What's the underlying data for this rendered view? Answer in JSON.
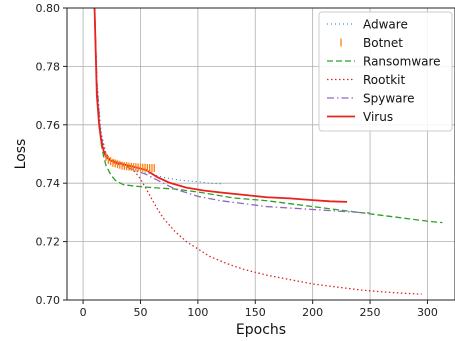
{
  "chart_data": {
    "type": "line",
    "xlabel": "Epochs",
    "ylabel": "Loss",
    "xlim": [
      -14,
      324
    ],
    "ylim": [
      0.7,
      0.8
    ],
    "xticks": [
      0,
      50,
      100,
      150,
      200,
      250,
      300
    ],
    "yticks": [
      0.7,
      0.72,
      0.74,
      0.76,
      0.78,
      0.8
    ],
    "xtick_labels": [
      "0",
      "50",
      "100",
      "150",
      "200",
      "250",
      "300"
    ],
    "ytick_labels": [
      "0.70",
      "0.72",
      "0.74",
      "0.76",
      "0.78",
      "0.80"
    ],
    "grid": true,
    "legend_position": "top-right",
    "series": [
      {
        "name": "Adware",
        "color": "#1f77b4",
        "style": "dotted-fine",
        "x": [
          10,
          12,
          15,
          18,
          22,
          28,
          35,
          45,
          55,
          70,
          85,
          100,
          110,
          120
        ],
        "y": [
          0.8,
          0.775,
          0.76,
          0.752,
          0.748,
          0.747,
          0.746,
          0.744,
          0.7435,
          0.742,
          0.741,
          0.7405,
          0.74,
          0.7398
        ]
      },
      {
        "name": "Botnet",
        "color": "#ff7f0e",
        "style": "errorbar",
        "x": [
          10,
          12,
          15,
          18,
          20,
          22,
          24,
          26,
          28,
          30,
          32,
          34,
          36,
          38,
          40,
          42,
          44,
          46,
          48,
          50,
          52,
          54,
          56,
          58,
          60,
          62
        ],
        "y": [
          0.8,
          0.775,
          0.758,
          0.751,
          0.749,
          0.748,
          0.7475,
          0.747,
          0.7468,
          0.7465,
          0.7463,
          0.746,
          0.7459,
          0.7458,
          0.7457,
          0.7456,
          0.7455,
          0.7455,
          0.7454,
          0.7454,
          0.7453,
          0.7453,
          0.7452,
          0.7452,
          0.7452,
          0.7452
        ]
      },
      {
        "name": "Ransomware",
        "color": "#2ca02c",
        "style": "dashed",
        "x": [
          10,
          12,
          14,
          16,
          18,
          20,
          24,
          28,
          35,
          45,
          60,
          80,
          100,
          130,
          160,
          200,
          240,
          260,
          280,
          300,
          313
        ],
        "y": [
          0.8,
          0.772,
          0.76,
          0.753,
          0.749,
          0.746,
          0.743,
          0.741,
          0.7395,
          0.739,
          0.7385,
          0.738,
          0.737,
          0.735,
          0.734,
          0.732,
          0.73,
          0.729,
          0.728,
          0.727,
          0.7265
        ]
      },
      {
        "name": "Rootkit",
        "color": "#d62728",
        "style": "dotted",
        "x": [
          10,
          12,
          15,
          20,
          25,
          30,
          35,
          40,
          45,
          50,
          55,
          60,
          65,
          70,
          80,
          90,
          100,
          110,
          125,
          140,
          160,
          180,
          200,
          220,
          240,
          260,
          280,
          295
        ],
        "y": [
          0.8,
          0.775,
          0.758,
          0.75,
          0.748,
          0.7475,
          0.7465,
          0.7455,
          0.744,
          0.7415,
          0.738,
          0.7345,
          0.731,
          0.728,
          0.7235,
          0.72,
          0.7175,
          0.715,
          0.7125,
          0.7105,
          0.7085,
          0.707,
          0.7055,
          0.7045,
          0.7035,
          0.7028,
          0.7023,
          0.702
        ]
      },
      {
        "name": "Spyware",
        "color": "#9467bd",
        "style": "dashdot",
        "x": [
          10,
          12,
          15,
          18,
          22,
          28,
          35,
          45,
          55,
          65,
          80,
          100,
          120,
          140,
          160,
          180,
          200,
          220,
          240,
          250
        ],
        "y": [
          0.8,
          0.775,
          0.758,
          0.751,
          0.748,
          0.7468,
          0.746,
          0.7445,
          0.743,
          0.741,
          0.738,
          0.7355,
          0.734,
          0.733,
          0.732,
          0.7315,
          0.731,
          0.7305,
          0.73,
          0.7298
        ]
      },
      {
        "name": "Virus",
        "color": "#e8231d",
        "style": "solid",
        "x": [
          10,
          11,
          12,
          14,
          16,
          18,
          20,
          24,
          28,
          35,
          45,
          55,
          65,
          75,
          90,
          105,
          120,
          140,
          160,
          180,
          200,
          215,
          230
        ],
        "y": [
          0.8,
          0.785,
          0.77,
          0.76,
          0.754,
          0.751,
          0.749,
          0.7478,
          0.7472,
          0.7465,
          0.7455,
          0.7445,
          0.742,
          0.7402,
          0.7385,
          0.7375,
          0.7368,
          0.736,
          0.7352,
          0.7348,
          0.7342,
          0.7338,
          0.7336
        ]
      }
    ]
  }
}
